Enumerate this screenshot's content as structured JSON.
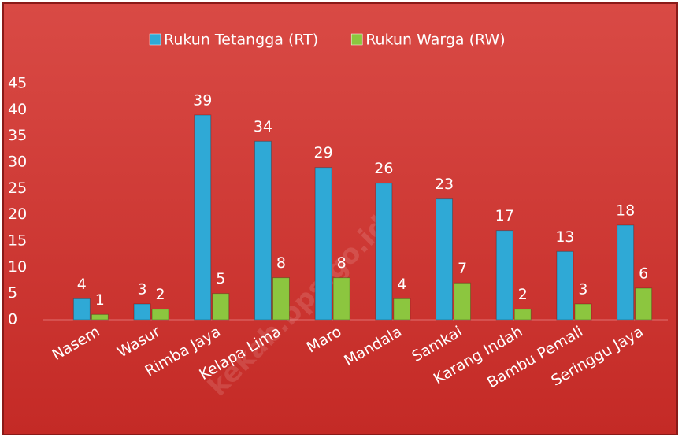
{
  "chart_data": {
    "type": "bar",
    "categories": [
      "Nasem",
      "Wasur",
      "Rimba Jaya",
      "Kelapa Lima",
      "Maro",
      "Mandala",
      "Samkai",
      "Karang Indah",
      "Bambu Pemali",
      "Seringgu Jaya"
    ],
    "series": [
      {
        "name": "Rukun Tetangga (RT)",
        "color": "#2fa9d6",
        "values": [
          4,
          3,
          39,
          34,
          29,
          26,
          23,
          17,
          13,
          18
        ]
      },
      {
        "name": "Rukun Warga (RW)",
        "color": "#8cc63f",
        "values": [
          1,
          2,
          5,
          8,
          8,
          4,
          7,
          2,
          3,
          6
        ]
      }
    ],
    "ylim": [
      0,
      45
    ],
    "yticks": [
      0,
      5,
      10,
      15,
      20,
      25,
      30,
      35,
      40,
      45
    ],
    "grid": false,
    "legend": "top",
    "watermark": "kekab.bps.go.id"
  }
}
